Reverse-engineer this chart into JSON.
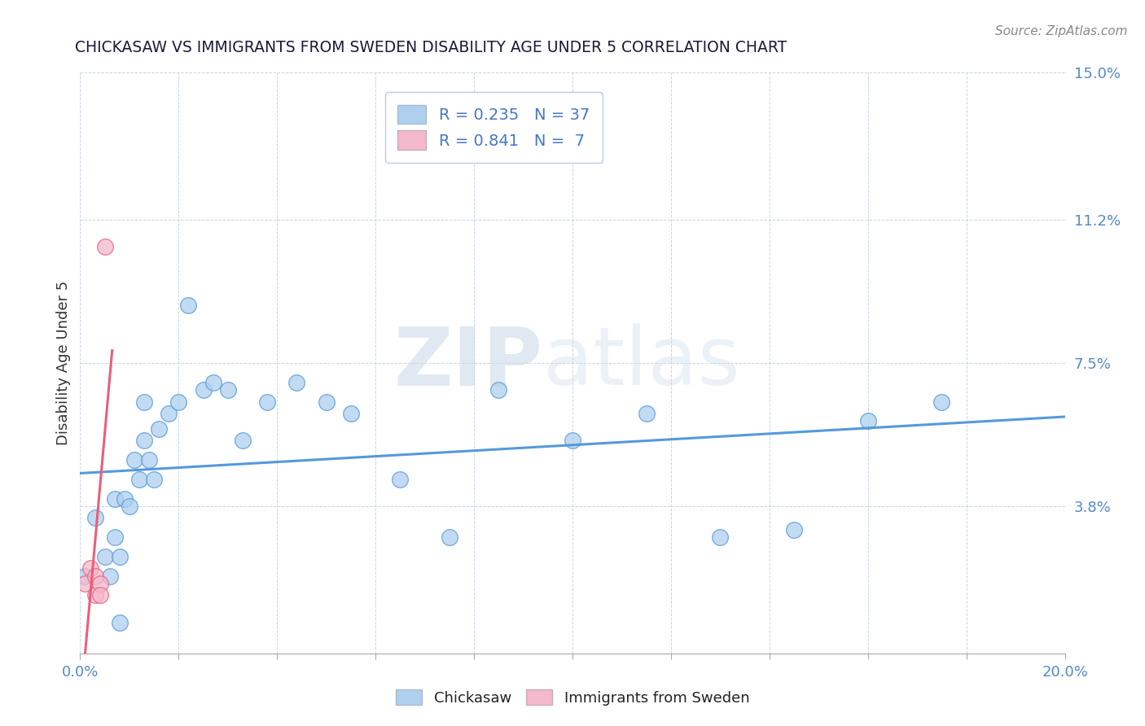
{
  "title": "CHICKASAW VS IMMIGRANTS FROM SWEDEN DISABILITY AGE UNDER 5 CORRELATION CHART",
  "source": "Source: ZipAtlas.com",
  "ylabel": "Disability Age Under 5",
  "xlim": [
    0.0,
    0.2
  ],
  "ylim": [
    0.0,
    0.15
  ],
  "yticks": [
    0.038,
    0.075,
    0.112,
    0.15
  ],
  "ytick_labels": [
    "3.8%",
    "7.5%",
    "11.2%",
    "15.0%"
  ],
  "chickasaw_color": "#aecfee",
  "sweden_color": "#f4b8cc",
  "line_chickasaw_color": "#5599dd",
  "line_sweden_color": "#e8607a",
  "legend_r1": "R = 0.235",
  "legend_n1": "N = 37",
  "legend_r2": "R = 0.841",
  "legend_n2": "N =  7",
  "watermark_zip": "ZIP",
  "watermark_atlas": "atlas",
  "background_color": "#ffffff",
  "chickasaw_x": [
    0.001,
    0.003,
    0.005,
    0.006,
    0.007,
    0.007,
    0.008,
    0.008,
    0.009,
    0.01,
    0.011,
    0.012,
    0.013,
    0.013,
    0.014,
    0.015,
    0.016,
    0.018,
    0.02,
    0.022,
    0.025,
    0.027,
    0.03,
    0.033,
    0.038,
    0.044,
    0.05,
    0.055,
    0.065,
    0.075,
    0.085,
    0.1,
    0.115,
    0.13,
    0.145,
    0.16,
    0.175
  ],
  "chickasaw_y": [
    0.02,
    0.035,
    0.025,
    0.02,
    0.03,
    0.04,
    0.008,
    0.025,
    0.04,
    0.038,
    0.05,
    0.045,
    0.055,
    0.065,
    0.05,
    0.045,
    0.058,
    0.062,
    0.065,
    0.09,
    0.068,
    0.07,
    0.068,
    0.055,
    0.065,
    0.07,
    0.065,
    0.062,
    0.045,
    0.03,
    0.068,
    0.055,
    0.062,
    0.03,
    0.032,
    0.06,
    0.065
  ],
  "sweden_x": [
    0.001,
    0.002,
    0.003,
    0.003,
    0.004,
    0.004,
    0.005
  ],
  "sweden_y": [
    0.018,
    0.022,
    0.02,
    0.015,
    0.018,
    0.015,
    0.105
  ]
}
